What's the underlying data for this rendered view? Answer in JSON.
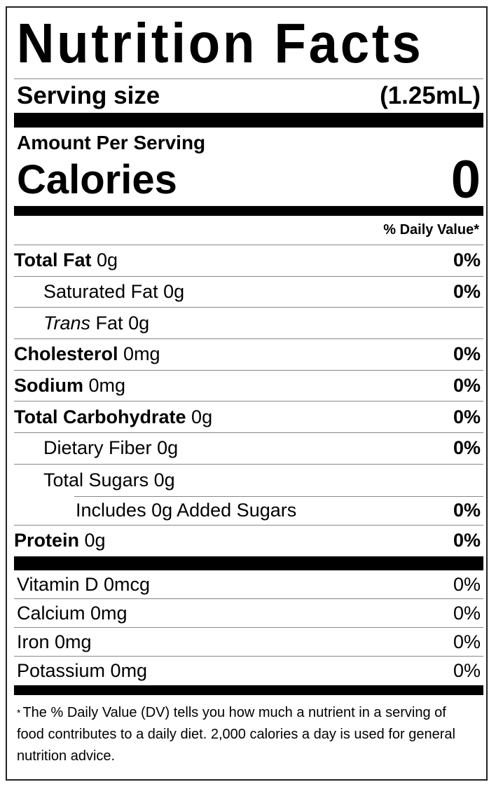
{
  "title": "Nutrition Facts",
  "serving": {
    "label": "Serving size",
    "value": "(1.25mL)"
  },
  "amount_per_serving": "Amount Per Serving",
  "calories": {
    "label": "Calories",
    "value": "0"
  },
  "daily_value_header": "% Daily Value*",
  "nutrients": [
    {
      "name": "Total Fat",
      "amount": "0g",
      "dv": "0%"
    },
    {
      "name": "Saturated Fat",
      "amount": "0g",
      "dv": "0%"
    },
    {
      "name": "Trans",
      "suffix": "Fat",
      "amount": "0g"
    },
    {
      "name": "Cholesterol",
      "amount": "0mg",
      "dv": "0%"
    },
    {
      "name": "Sodium",
      "amount": "0mg",
      "dv": "0%"
    },
    {
      "name": "Total Carbohydrate",
      "amount": "0g",
      "dv": "0%"
    },
    {
      "name": "Dietary Fiber",
      "amount": "0g",
      "dv": "0%"
    },
    {
      "name": "Total Sugars",
      "amount": "0g"
    },
    {
      "text": "Includes 0g Added Sugars",
      "dv": "0%"
    },
    {
      "name": "Protein",
      "amount": "0g",
      "dv": "0%"
    }
  ],
  "vitamins": [
    {
      "text": "Vitamin D 0mcg",
      "dv": "0%"
    },
    {
      "text": "Calcium 0mg",
      "dv": "0%"
    },
    {
      "text": "Iron 0mg",
      "dv": "0%"
    },
    {
      "text": "Potassium 0mg",
      "dv": "0%"
    }
  ],
  "footnote": {
    "star": "*",
    "text": "The % Daily Value (DV) tells you how much a nutrient in a serving of food contributes to a daily diet. 2,000 calories a day is used for general nutrition advice."
  }
}
